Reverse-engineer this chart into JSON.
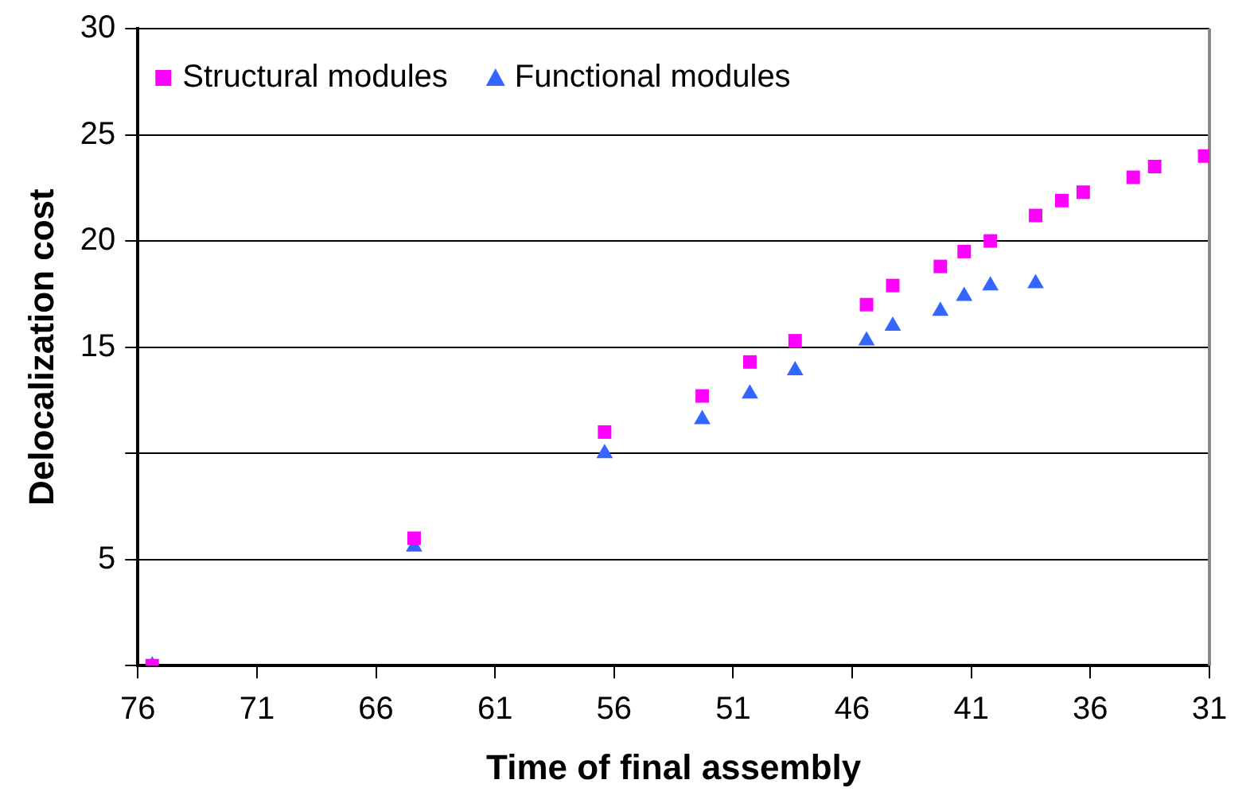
{
  "chart_data": {
    "type": "scatter",
    "xlabel": "Time of final assembly",
    "ylabel": "Delocalization cost",
    "xlim": [
      76,
      31
    ],
    "xticks": [
      76,
      71,
      66,
      61,
      56,
      51,
      46,
      41,
      36,
      31
    ],
    "ylim": [
      0,
      30
    ],
    "yticks": [
      {
        "value": 0,
        "label": null
      },
      5,
      {
        "value": 10,
        "label": null
      },
      15,
      20,
      25,
      30
    ],
    "grid": "y",
    "legend": "top left",
    "series": [
      {
        "name": "Structural modules",
        "color": "#ff00ff",
        "marker": "square",
        "x": [
          75.4,
          64.4,
          56.4,
          52.3,
          50.3,
          48.4,
          45.4,
          44.3,
          42.3,
          41.3,
          40.2,
          38.3,
          37.2,
          36.3,
          34.2,
          33.3,
          31.2
        ],
        "values": [
          0,
          6.0,
          11.0,
          12.7,
          14.3,
          15.3,
          17.0,
          17.9,
          18.8,
          19.5,
          20.0,
          21.2,
          21.9,
          22.3,
          23.0,
          23.5,
          24.0
        ]
      },
      {
        "name": "Functional modules",
        "color": "#3366ff",
        "marker": "triangle",
        "x": [
          75.4,
          64.4,
          56.4,
          52.3,
          50.3,
          48.4,
          45.4,
          44.3,
          42.3,
          41.3,
          40.2,
          38.3
        ],
        "values": [
          0,
          5.6,
          10.0,
          11.6,
          12.8,
          13.9,
          15.3,
          16.0,
          16.7,
          17.4,
          17.9,
          18.0
        ]
      }
    ]
  }
}
